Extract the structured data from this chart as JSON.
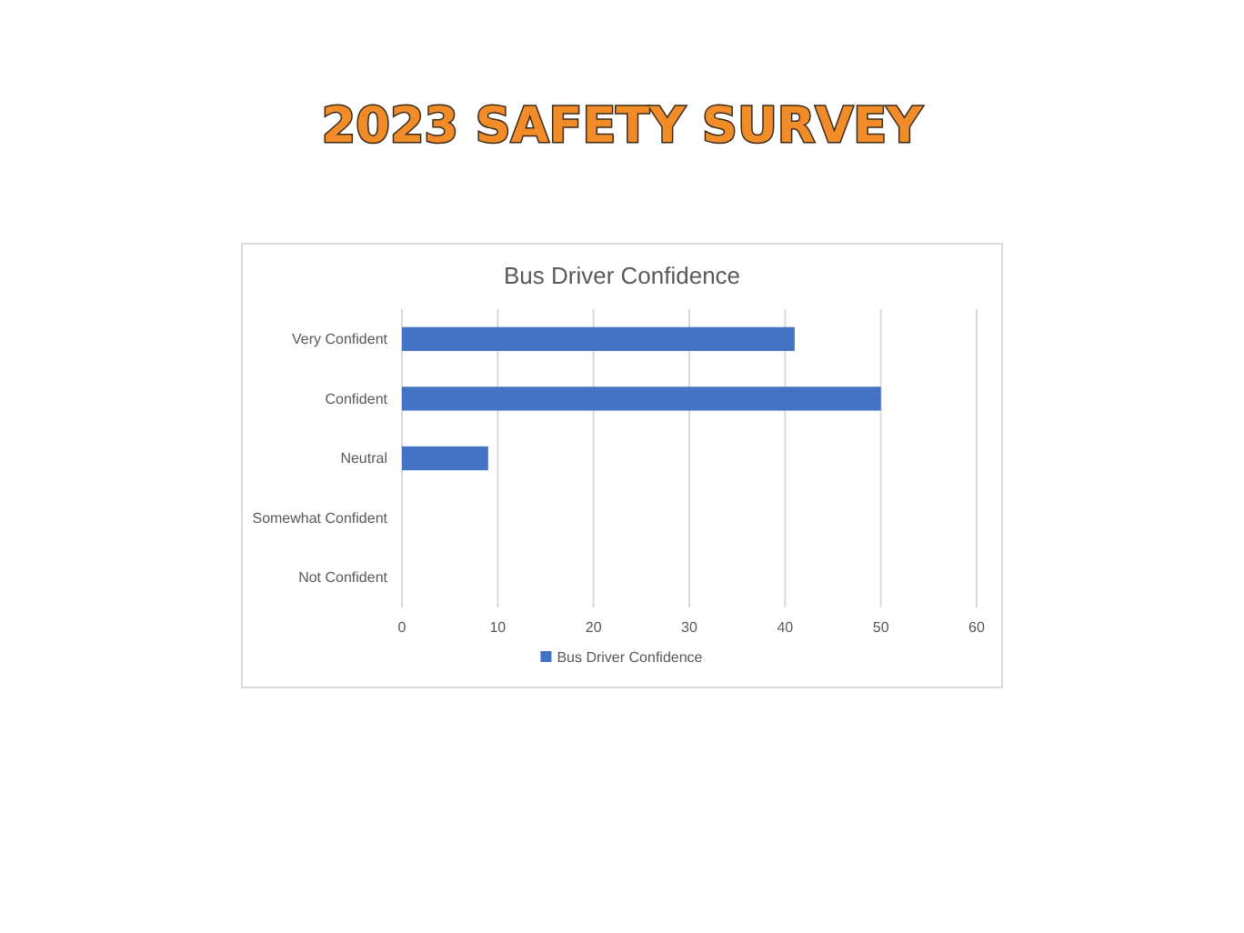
{
  "chart_data": {
    "type": "bar",
    "orientation": "horizontal",
    "title": "2023 SAFETY SURVEY",
    "subtitle": "Bus Driver Confidence",
    "categories": [
      "Very Confident",
      "Confident",
      "Neutral",
      "Somewhat Confident",
      "Not Confident"
    ],
    "series": [
      {
        "name": "Bus Driver Confidence",
        "color": "#4472c4",
        "values": [
          41,
          50,
          9,
          0,
          0
        ]
      }
    ],
    "xlim": [
      0,
      60
    ],
    "xticks": [
      0,
      10,
      20,
      30,
      40,
      50,
      60
    ],
    "grid": "x",
    "legend": "bottom"
  }
}
